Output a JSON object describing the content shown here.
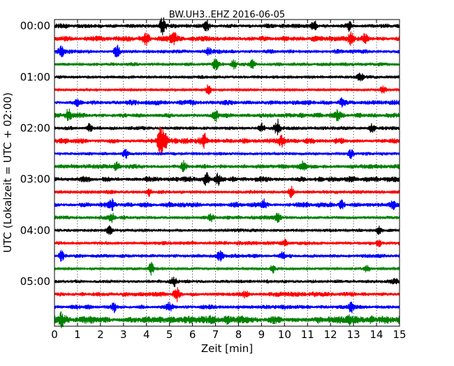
{
  "chart_data": {
    "type": "line",
    "title": "BW.UH3..EHZ 2016-06-05",
    "xlabel": "Zeit  [min]",
    "ylabel": "UTC (Lokalzeit = UTC + 02:00)",
    "xlim": [
      0,
      15
    ],
    "x_ticks": [
      "0",
      "1",
      "2",
      "3",
      "4",
      "5",
      "6",
      "7",
      "8",
      "9",
      "10",
      "11",
      "12",
      "13",
      "14",
      "15"
    ],
    "y_ticks": [
      "00:00",
      "01:00",
      "02:00",
      "03:00",
      "04:00",
      "05:00"
    ],
    "grid": "vertical dotted",
    "trace_interval_minutes": 15,
    "trace_colors": [
      "#000000",
      "#ff0000",
      "#0000ff",
      "#008000"
    ],
    "series": [
      {
        "start": "00:00",
        "color": "#000000",
        "base_amp": 0.35,
        "events": [
          {
            "x": 4.7,
            "amp": 1.6
          },
          {
            "x": 6.6,
            "amp": 1.1
          },
          {
            "x": 11.3,
            "amp": 1.0
          },
          {
            "x": 12.8,
            "amp": 0.9
          }
        ]
      },
      {
        "start": "00:15",
        "color": "#ff0000",
        "base_amp": 0.45,
        "events": [
          {
            "x": 4.0,
            "amp": 0.8
          },
          {
            "x": 5.2,
            "amp": 0.9
          },
          {
            "x": 12.9,
            "amp": 1.3
          },
          {
            "x": 13.5,
            "amp": 0.8
          }
        ]
      },
      {
        "start": "00:30",
        "color": "#0000ff",
        "base_amp": 0.35,
        "events": [
          {
            "x": 0.3,
            "amp": 0.7
          },
          {
            "x": 2.7,
            "amp": 1.2
          },
          {
            "x": 6.7,
            "amp": 0.6
          }
        ]
      },
      {
        "start": "00:45",
        "color": "#008000",
        "base_amp": 0.3,
        "events": [
          {
            "x": 7.0,
            "amp": 0.9
          },
          {
            "x": 7.8,
            "amp": 0.9
          },
          {
            "x": 8.6,
            "amp": 0.8
          }
        ]
      },
      {
        "start": "01:00",
        "color": "#000000",
        "base_amp": 0.25,
        "events": [
          {
            "x": 13.3,
            "amp": 0.7
          }
        ]
      },
      {
        "start": "01:15",
        "color": "#ff0000",
        "base_amp": 0.2,
        "events": [
          {
            "x": 6.7,
            "amp": 1.0
          },
          {
            "x": 14.3,
            "amp": 0.8
          }
        ]
      },
      {
        "start": "01:30",
        "color": "#0000ff",
        "base_amp": 0.4,
        "events": [
          {
            "x": 1.0,
            "amp": 0.7
          },
          {
            "x": 12.5,
            "amp": 0.6
          }
        ]
      },
      {
        "start": "01:45",
        "color": "#008000",
        "base_amp": 0.4,
        "events": [
          {
            "x": 0.6,
            "amp": 1.1
          },
          {
            "x": 7.0,
            "amp": 1.0
          },
          {
            "x": 12.3,
            "amp": 0.8
          }
        ]
      },
      {
        "start": "02:00",
        "color": "#000000",
        "base_amp": 0.3,
        "events": [
          {
            "x": 1.5,
            "amp": 0.8
          },
          {
            "x": 9.0,
            "amp": 0.8
          },
          {
            "x": 9.7,
            "amp": 1.6
          },
          {
            "x": 13.8,
            "amp": 0.9
          }
        ]
      },
      {
        "start": "02:15",
        "color": "#ff0000",
        "base_amp": 0.45,
        "events": [
          {
            "x": 4.6,
            "amp": 2.2
          },
          {
            "x": 4.8,
            "amp": 1.4
          },
          {
            "x": 6.5,
            "amp": 1.3
          },
          {
            "x": 9.9,
            "amp": 0.8
          }
        ]
      },
      {
        "start": "02:30",
        "color": "#0000ff",
        "base_amp": 0.25,
        "events": [
          {
            "x": 3.1,
            "amp": 0.8
          },
          {
            "x": 12.9,
            "amp": 0.8
          }
        ]
      },
      {
        "start": "02:45",
        "color": "#008000",
        "base_amp": 0.35,
        "events": [
          {
            "x": 2.7,
            "amp": 0.9
          },
          {
            "x": 5.6,
            "amp": 0.9
          },
          {
            "x": 10.8,
            "amp": 0.9
          }
        ]
      },
      {
        "start": "03:00",
        "color": "#000000",
        "base_amp": 0.45,
        "events": [
          {
            "x": 6.6,
            "amp": 1.0
          },
          {
            "x": 7.1,
            "amp": 0.9
          }
        ]
      },
      {
        "start": "03:15",
        "color": "#ff0000",
        "base_amp": 0.3,
        "events": [
          {
            "x": 4.1,
            "amp": 0.7
          },
          {
            "x": 10.3,
            "amp": 0.9
          }
        ]
      },
      {
        "start": "03:30",
        "color": "#0000ff",
        "base_amp": 0.4,
        "events": [
          {
            "x": 2.5,
            "amp": 0.8
          },
          {
            "x": 9.1,
            "amp": 0.8
          },
          {
            "x": 12.5,
            "amp": 0.8
          },
          {
            "x": 14.7,
            "amp": 0.7
          }
        ]
      },
      {
        "start": "03:45",
        "color": "#008000",
        "base_amp": 0.3,
        "events": [
          {
            "x": 2.5,
            "amp": 0.8
          },
          {
            "x": 6.8,
            "amp": 0.7
          },
          {
            "x": 9.7,
            "amp": 0.7
          }
        ]
      },
      {
        "start": "04:00",
        "color": "#000000",
        "base_amp": 0.25,
        "events": [
          {
            "x": 2.4,
            "amp": 0.8
          },
          {
            "x": 14.1,
            "amp": 0.7
          }
        ]
      },
      {
        "start": "04:15",
        "color": "#ff0000",
        "base_amp": 0.3,
        "events": [
          {
            "x": 10.0,
            "amp": 0.6
          },
          {
            "x": 14.1,
            "amp": 0.7
          }
        ]
      },
      {
        "start": "04:30",
        "color": "#0000ff",
        "base_amp": 0.3,
        "events": [
          {
            "x": 0.3,
            "amp": 0.9
          },
          {
            "x": 7.2,
            "amp": 0.8
          },
          {
            "x": 9.9,
            "amp": 0.7
          }
        ]
      },
      {
        "start": "04:45",
        "color": "#008000",
        "base_amp": 0.2,
        "events": [
          {
            "x": 4.2,
            "amp": 1.2
          },
          {
            "x": 9.5,
            "amp": 0.7
          },
          {
            "x": 13.6,
            "amp": 0.6
          }
        ]
      },
      {
        "start": "05:00",
        "color": "#000000",
        "base_amp": 0.3,
        "events": [
          {
            "x": 5.2,
            "amp": 0.8
          },
          {
            "x": 14.8,
            "amp": 0.6
          }
        ]
      },
      {
        "start": "05:15",
        "color": "#ff0000",
        "base_amp": 0.35,
        "events": [
          {
            "x": 5.3,
            "amp": 1.3
          },
          {
            "x": 8.3,
            "amp": 0.6
          }
        ]
      },
      {
        "start": "05:30",
        "color": "#0000ff",
        "base_amp": 0.35,
        "events": [
          {
            "x": 2.6,
            "amp": 0.9
          },
          {
            "x": 5.0,
            "amp": 0.8
          },
          {
            "x": 12.9,
            "amp": 0.8
          }
        ]
      },
      {
        "start": "05:45",
        "color": "#008000",
        "base_amp": 0.6,
        "events": [
          {
            "x": 0.3,
            "amp": 0.8
          },
          {
            "x": 7.5,
            "amp": 0.7
          },
          {
            "x": 12.8,
            "amp": 0.7
          }
        ]
      }
    ]
  }
}
